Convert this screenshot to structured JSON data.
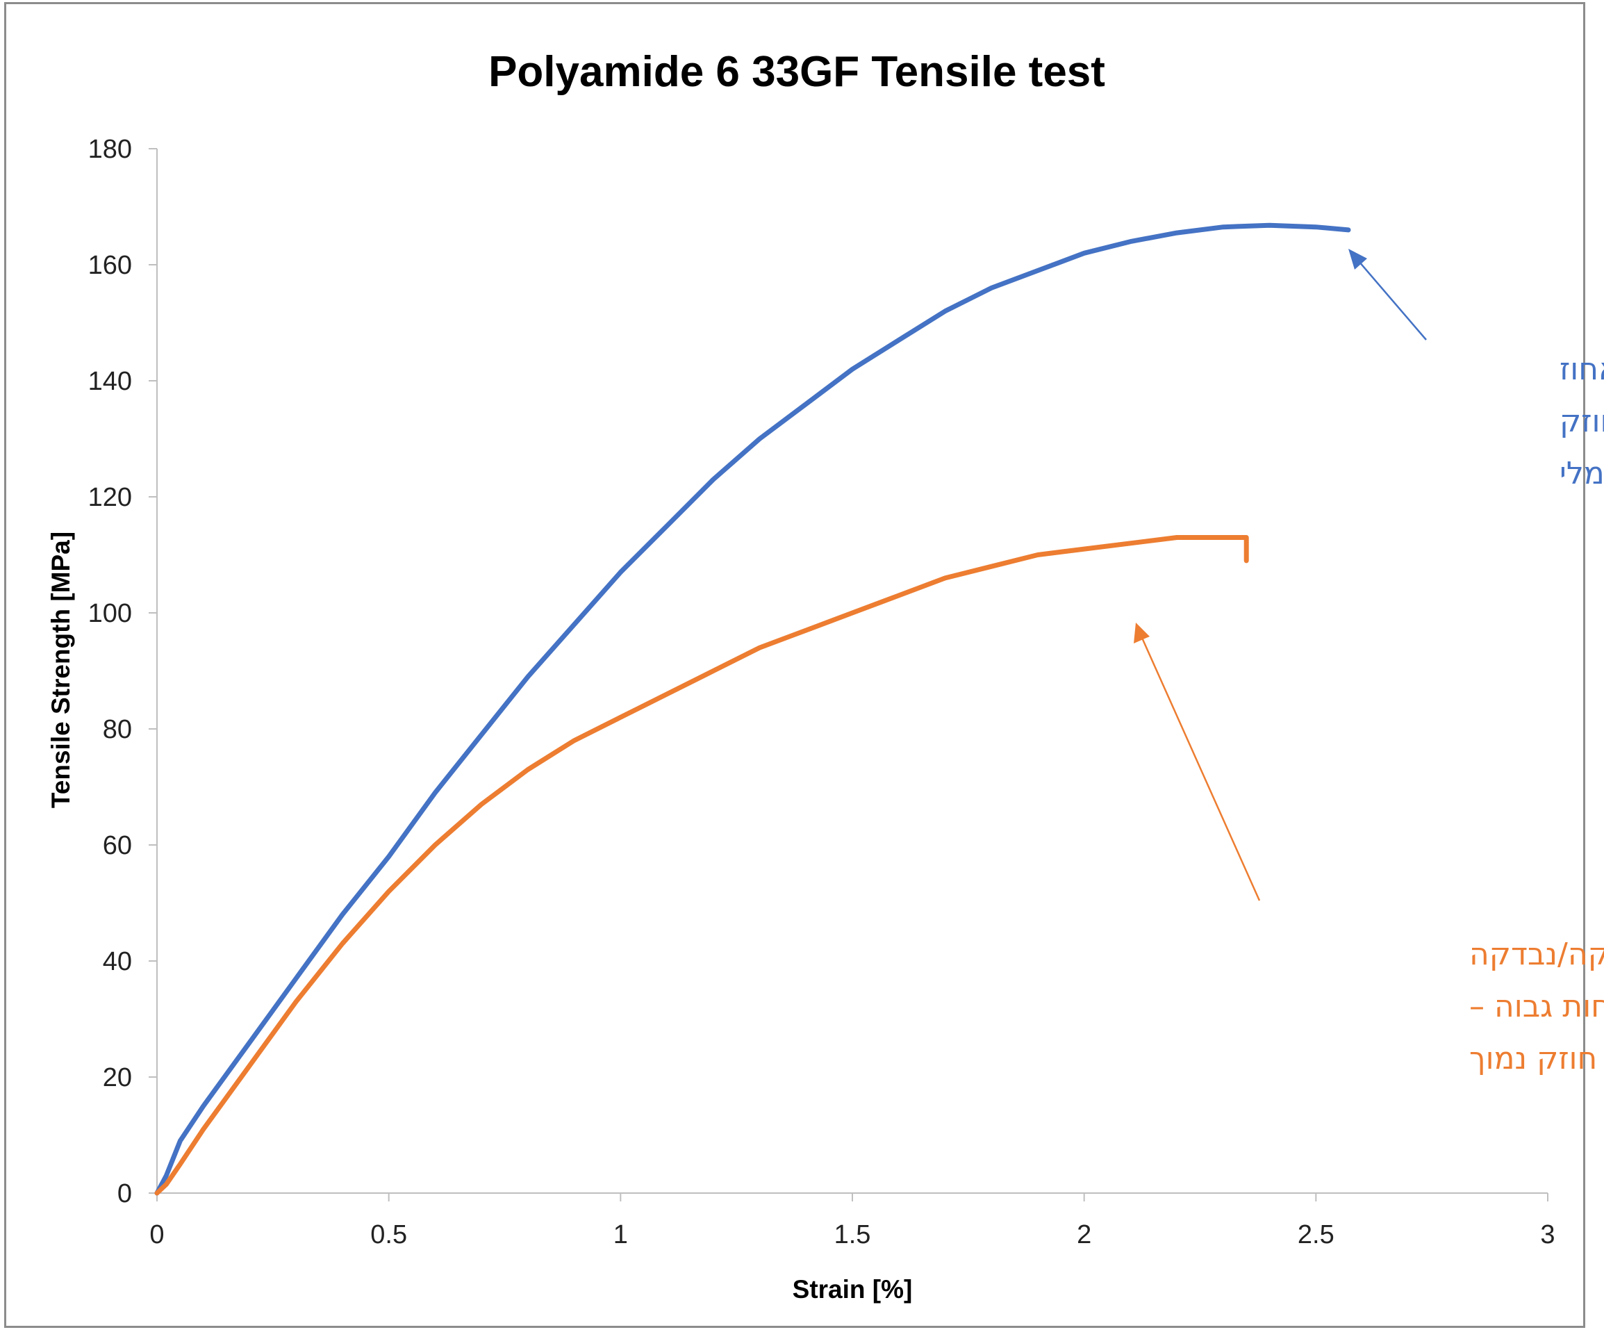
{
  "chart_data": {
    "type": "line",
    "title": "Polyamide 6 33GF Tensile test",
    "xlabel": "Strain [%]",
    "ylabel": "Tensile Strength [MPa]",
    "xlim": [
      0,
      3
    ],
    "ylim": [
      0,
      180
    ],
    "x_ticks": [
      "0",
      "0.5",
      "1",
      "1.5",
      "2",
      "2.5",
      "3"
    ],
    "y_ticks": [
      "0",
      "20",
      "40",
      "60",
      "80",
      "100",
      "120",
      "140",
      "160",
      "180"
    ],
    "grid": false,
    "legend": "none",
    "series": [
      {
        "color": "#4472c4",
        "x": [
          0,
          0.02,
          0.05,
          0.1,
          0.2,
          0.3,
          0.4,
          0.5,
          0.6,
          0.7,
          0.8,
          0.9,
          1.0,
          1.1,
          1.2,
          1.3,
          1.4,
          1.5,
          1.6,
          1.7,
          1.8,
          1.9,
          2.0,
          2.1,
          2.2,
          2.3,
          2.4,
          2.5,
          2.57
        ],
        "y": [
          0,
          3,
          9,
          15,
          26,
          37,
          48,
          58,
          69,
          79,
          89,
          98,
          107,
          115,
          123,
          130,
          136,
          142,
          147,
          152,
          156,
          159,
          162,
          164,
          165.5,
          166.5,
          166.8,
          166.5,
          166
        ]
      },
      {
        "color": "#ed7d31",
        "x": [
          0,
          0.02,
          0.05,
          0.1,
          0.2,
          0.3,
          0.4,
          0.5,
          0.6,
          0.7,
          0.8,
          0.9,
          1.0,
          1.1,
          1.2,
          1.3,
          1.4,
          1.5,
          1.6,
          1.7,
          1.8,
          1.9,
          2.0,
          2.1,
          2.2,
          2.3,
          2.35,
          2.35
        ],
        "y": [
          0,
          1.5,
          5,
          11,
          22,
          33,
          43,
          52,
          60,
          67,
          73,
          78,
          82,
          86,
          90,
          94,
          97,
          100,
          103,
          106,
          108,
          110,
          111,
          112,
          113,
          113,
          113,
          109
        ]
      }
    ],
    "annotations": [
      {
        "color": "#4472c4",
        "lines": [
          "דוגמא שהוזרקה/נבדקה באחוז",
          "לחות תקין – מתקבל חוזק",
          "אופטימלי"
        ]
      },
      {
        "color": "#ed7d31",
        "lines": [
          "דוגמא שהוזרקה/נבדקה",
          "באחוז לחות גבוה –",
          "מתקבל חוזק נמוך"
        ]
      }
    ]
  }
}
